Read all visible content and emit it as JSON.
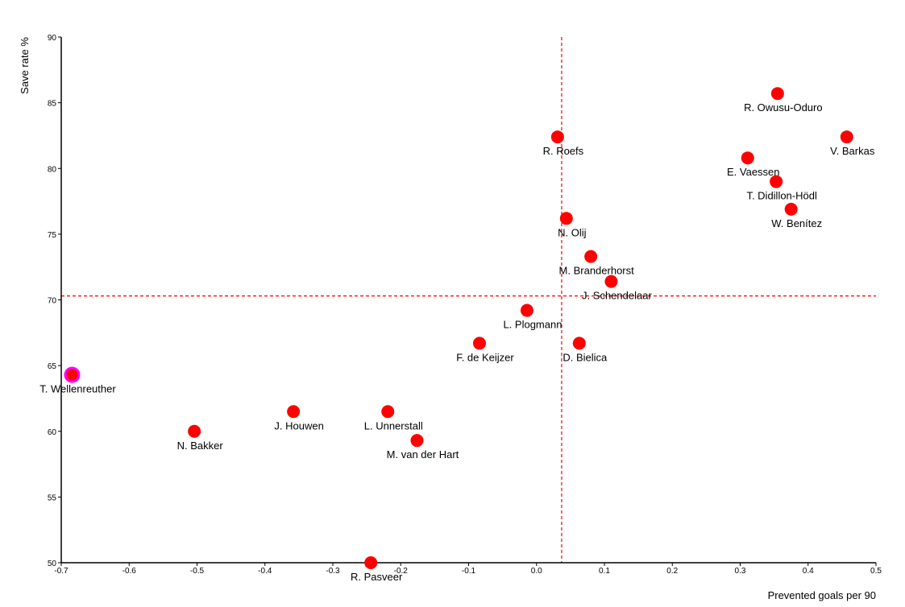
{
  "chart_data": {
    "type": "scatter",
    "xlabel": "Prevented goals per 90",
    "ylabel": "Save rate %",
    "xlim": [
      -0.7,
      0.5
    ],
    "ylim": [
      50,
      90
    ],
    "x_ticks": [
      "-0.7",
      "-0.6",
      "-0.5",
      "-0.4",
      "-0.3",
      "-0.2",
      "-0.1",
      "0.0",
      "0.1",
      "0.2",
      "0.3",
      "0.4",
      "0.5"
    ],
    "x_tick_values": [
      -0.7,
      -0.6,
      -0.5,
      -0.4,
      -0.3,
      -0.2,
      -0.1,
      0.0,
      0.1,
      0.2,
      0.3,
      0.4,
      0.5
    ],
    "y_ticks": [
      "50",
      "55",
      "60",
      "65",
      "70",
      "75",
      "80",
      "85",
      "90"
    ],
    "y_tick_values": [
      50,
      55,
      60,
      65,
      70,
      75,
      80,
      85,
      90
    ],
    "reference_lines": {
      "x": 0.037,
      "y": 70.3
    },
    "colors": {
      "point": "#ff0000",
      "highlight": "#ff00ff",
      "reference": "#ff0000",
      "axis": "#000000"
    },
    "points": [
      {
        "name": "R. Owusu-Oduro",
        "x": 0.355,
        "y": 85.7,
        "highlight": false
      },
      {
        "name": "V. Barkas",
        "x": 0.457,
        "y": 82.4,
        "highlight": false
      },
      {
        "name": "R. Roefs",
        "x": 0.031,
        "y": 82.4,
        "highlight": false
      },
      {
        "name": "E. Vaessen",
        "x": 0.311,
        "y": 80.8,
        "highlight": false
      },
      {
        "name": "T. Didillon-Hödl",
        "x": 0.353,
        "y": 79.0,
        "highlight": false
      },
      {
        "name": "W. Benítez",
        "x": 0.375,
        "y": 76.9,
        "highlight": false
      },
      {
        "name": "N. Olij",
        "x": 0.044,
        "y": 76.2,
        "highlight": false
      },
      {
        "name": "M. Branderhorst",
        "x": 0.08,
        "y": 73.3,
        "highlight": false
      },
      {
        "name": "J. Schendelaar",
        "x": 0.11,
        "y": 71.4,
        "highlight": false
      },
      {
        "name": "L. Plogmann",
        "x": -0.014,
        "y": 69.2,
        "highlight": false
      },
      {
        "name": "F. de Keijzer",
        "x": -0.084,
        "y": 66.7,
        "highlight": false
      },
      {
        "name": "D. Bielica",
        "x": 0.063,
        "y": 66.7,
        "highlight": false
      },
      {
        "name": "T. Wellenreuther",
        "x": -0.684,
        "y": 64.3,
        "highlight": true
      },
      {
        "name": "J. Houwen",
        "x": -0.358,
        "y": 61.5,
        "highlight": false
      },
      {
        "name": "L. Unnerstall",
        "x": -0.219,
        "y": 61.5,
        "highlight": false
      },
      {
        "name": "N. Bakker",
        "x": -0.504,
        "y": 60.0,
        "highlight": false
      },
      {
        "name": "M. van der Hart",
        "x": -0.176,
        "y": 59.3,
        "highlight": false
      },
      {
        "name": "R. Pasveer",
        "x": -0.244,
        "y": 50.0,
        "highlight": false
      }
    ]
  }
}
